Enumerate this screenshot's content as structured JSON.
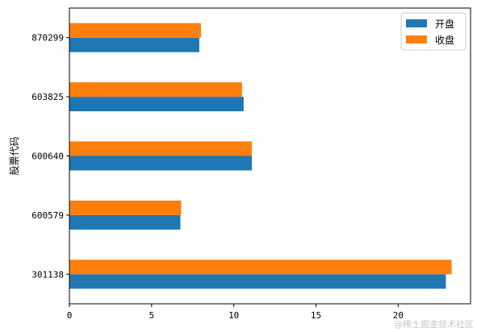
{
  "chart_data": {
    "type": "bar",
    "orientation": "horizontal",
    "categories": [
      "301138",
      "600579",
      "600640",
      "603825",
      "870299"
    ],
    "series": [
      {
        "name": "开盘",
        "color": "#1f77b4",
        "values": [
          22.9,
          6.75,
          11.1,
          10.6,
          7.9
        ]
      },
      {
        "name": "收盘",
        "color": "#ff7f0e",
        "values": [
          23.25,
          6.8,
          11.1,
          10.5,
          8.0
        ]
      }
    ],
    "ylabel": "股票代码",
    "xlim": [
      0,
      24.4
    ],
    "xticks": [
      0,
      5,
      10,
      15,
      20
    ],
    "grid": false,
    "legend_position": "top-right"
  },
  "watermark": "@稀土掘金技术社区"
}
